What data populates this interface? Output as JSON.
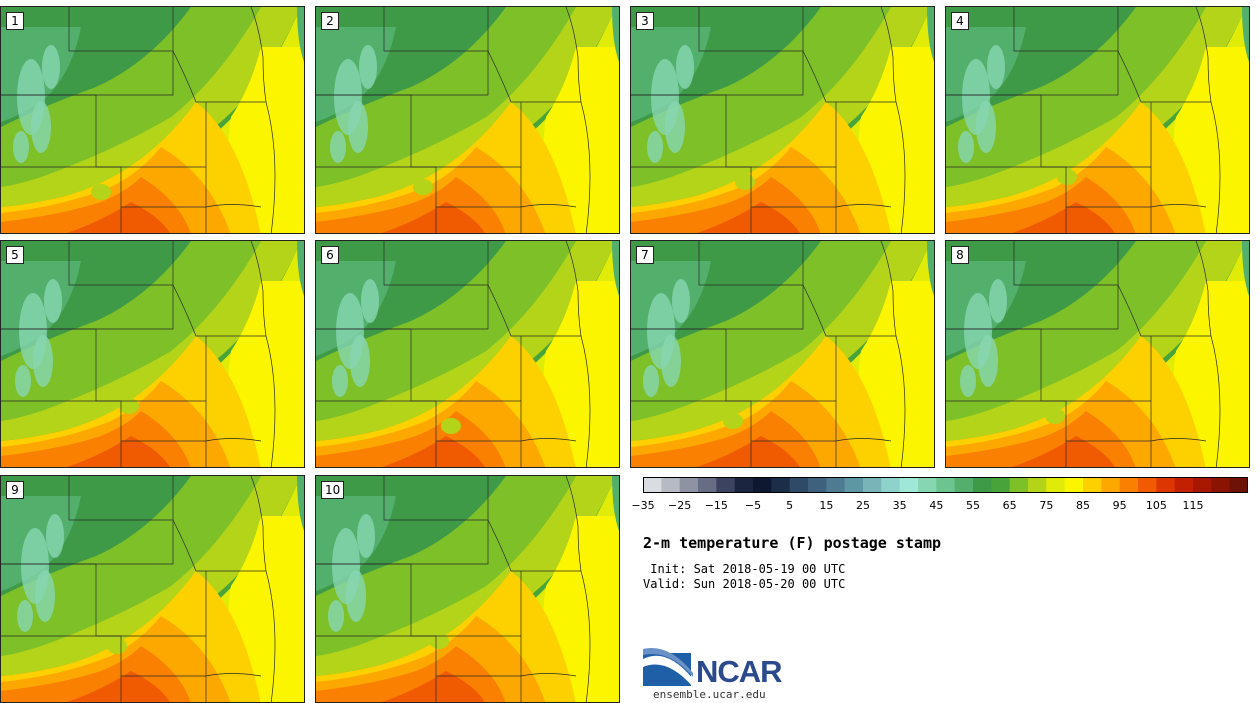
{
  "panels": [
    "1",
    "2",
    "3",
    "4",
    "5",
    "6",
    "7",
    "8",
    "9",
    "10"
  ],
  "colorbar": {
    "colors": [
      "#d9dce0",
      "#b6bac2",
      "#8d93a3",
      "#676d84",
      "#3b4360",
      "#1c2540",
      "#0e1830",
      "#1a2e48",
      "#2e4a66",
      "#3f6180",
      "#4e7a92",
      "#5e97a4",
      "#79b4b8",
      "#8fd2cc",
      "#9fe8d8",
      "#87d6b2",
      "#6cc48e",
      "#52b06c",
      "#3f9a48",
      "#48a43a",
      "#7ec028",
      "#b3d418",
      "#e0ec08",
      "#fbf600",
      "#fdd000",
      "#fca800",
      "#f98000",
      "#f05a00",
      "#dd3600",
      "#c22000",
      "#a81800",
      "#8a1400",
      "#6e1208"
    ],
    "ticks": [
      "−35",
      "−25",
      "−15",
      "−5",
      "5",
      "15",
      "25",
      "35",
      "45",
      "55",
      "65",
      "75",
      "85",
      "95",
      "105",
      "115"
    ]
  },
  "title": "2-m temperature (F) postage stamp",
  "init": " Init: Sat 2018-05-19 00 UTC",
  "valid": "Valid: Sun 2018-05-20 00 UTC",
  "logo": {
    "name": "NCAR",
    "site": "ensemble.ucar.edu"
  }
}
